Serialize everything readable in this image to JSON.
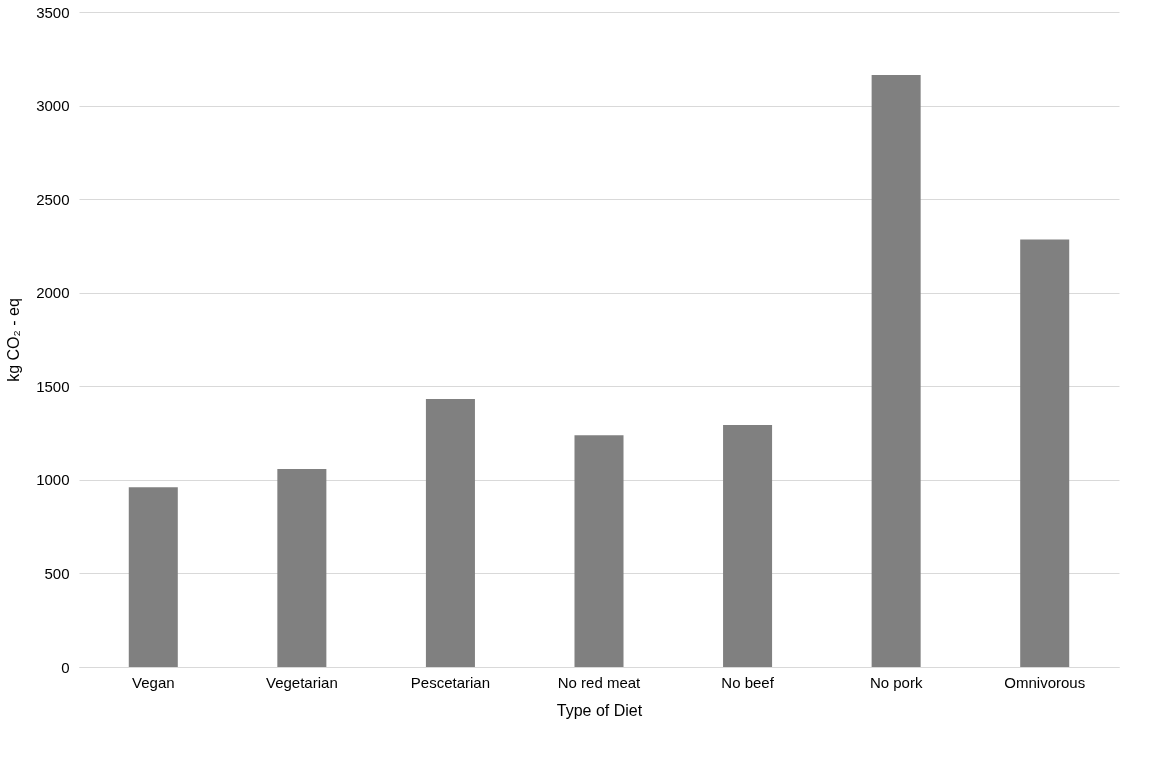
{
  "chart_data": {
    "type": "bar",
    "xlabel": "Type of Diet",
    "ylabel": "kg CO₂ - eq",
    "categories": [
      "Vegan",
      "Vegetarian",
      "Pescetarian",
      "No red meat",
      "No beef",
      "No pork",
      "Omnivorous"
    ],
    "values": [
      960,
      1058,
      1432,
      1238,
      1293,
      3164,
      2285
    ],
    "color": "#808080",
    "ylim": [
      0,
      3500
    ],
    "yticks": [
      0,
      500,
      1000,
      1500,
      2000,
      2500,
      3000,
      3500
    ],
    "grid": "y"
  }
}
